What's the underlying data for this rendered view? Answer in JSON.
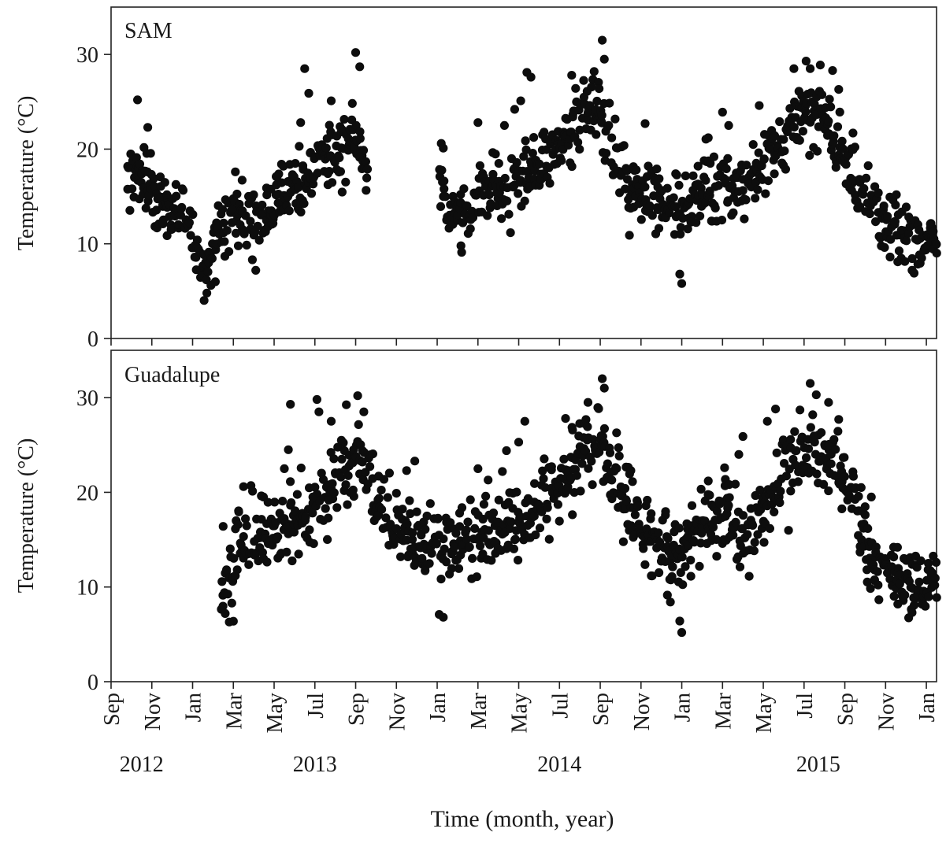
{
  "chart_data": [
    {
      "type": "scatter",
      "panel_label": "SAM",
      "ylabel": "Temperature (°C)",
      "ylim": [
        0,
        35
      ],
      "yticks": [
        0,
        10,
        20,
        30
      ],
      "x_unit": "months since 1 Sep 2012",
      "xlim": [
        0,
        40.5
      ],
      "segments": [
        {
          "start": 0.8,
          "end": 12.6,
          "anchors": [
            [
              0.8,
              16.5
            ],
            [
              1.5,
              17
            ],
            [
              2.2,
              14.5
            ],
            [
              3.0,
              13.5
            ],
            [
              3.6,
              12.5
            ],
            [
              4.3,
              9
            ],
            [
              4.7,
              7.5
            ],
            [
              5.2,
              11
            ],
            [
              5.8,
              13
            ],
            [
              6.5,
              12.5
            ],
            [
              7.2,
              13
            ],
            [
              8.0,
              14.5
            ],
            [
              8.8,
              15.5
            ],
            [
              9.5,
              16.5
            ],
            [
              10.2,
              19
            ],
            [
              11.0,
              19
            ],
            [
              11.8,
              22
            ],
            [
              12.6,
              18.5
            ]
          ],
          "amp": 3.2,
          "spikes": [
            [
              1.3,
              25.2
            ],
            [
              1.8,
              22.3
            ],
            [
              6.1,
              17.6
            ],
            [
              7.1,
              7.2
            ],
            [
              8.1,
              17.1
            ],
            [
              8.9,
              17.3
            ],
            [
              9.3,
              22.8
            ],
            [
              9.5,
              28.5
            ],
            [
              9.7,
              25.9
            ],
            [
              10.8,
              25.1
            ],
            [
              12.0,
              30.2
            ],
            [
              12.2,
              28.7
            ],
            [
              4.7,
              4.8
            ],
            [
              4.9,
              5.6
            ]
          ]
        },
        {
          "start": 16.1,
          "end": 40.5,
          "anchors": [
            [
              16.1,
              16
            ],
            [
              16.8,
              13
            ],
            [
              17.5,
              13.5
            ],
            [
              18.3,
              15.5
            ],
            [
              19.1,
              15.5
            ],
            [
              20.0,
              16.5
            ],
            [
              20.8,
              18
            ],
            [
              21.5,
              19
            ],
            [
              22.3,
              22
            ],
            [
              23.1,
              24
            ],
            [
              23.8,
              24.5
            ],
            [
              24.4,
              21
            ],
            [
              25.1,
              18
            ],
            [
              25.8,
              16
            ],
            [
              26.5,
              15
            ],
            [
              27.3,
              14
            ],
            [
              28.0,
              14
            ],
            [
              28.8,
              15
            ],
            [
              29.5,
              15.5
            ],
            [
              30.3,
              16
            ],
            [
              31.1,
              16
            ],
            [
              31.8,
              18
            ],
            [
              32.5,
              20.5
            ],
            [
              33.2,
              21.5
            ],
            [
              34.0,
              23.5
            ],
            [
              34.8,
              23.5
            ],
            [
              35.5,
              21.5
            ],
            [
              36.2,
              18.5
            ],
            [
              36.9,
              15
            ],
            [
              37.6,
              13
            ],
            [
              38.3,
              12.5
            ],
            [
              39.0,
              11
            ],
            [
              39.7,
              10.5
            ],
            [
              40.5,
              10.5
            ]
          ],
          "amp": 3.4,
          "spikes": [
            [
              16.2,
              20.6
            ],
            [
              16.3,
              20.1
            ],
            [
              17.2,
              9.1
            ],
            [
              18.0,
              22.8
            ],
            [
              19.3,
              22.5
            ],
            [
              19.8,
              24.2
            ],
            [
              20.1,
              25.1
            ],
            [
              20.4,
              28.1
            ],
            [
              20.6,
              27.6
            ],
            [
              22.6,
              27.8
            ],
            [
              23.7,
              28.2
            ],
            [
              24.1,
              31.5
            ],
            [
              24.2,
              29.5
            ],
            [
              26.2,
              22.7
            ],
            [
              27.7,
              17.4
            ],
            [
              27.9,
              6.8
            ],
            [
              28.0,
              5.8
            ],
            [
              28.8,
              18.2
            ],
            [
              29.3,
              21.2
            ],
            [
              30.0,
              23.9
            ],
            [
              30.3,
              22.5
            ],
            [
              31.8,
              24.6
            ],
            [
              33.5,
              28.5
            ],
            [
              34.1,
              29.3
            ],
            [
              34.3,
              28.5
            ],
            [
              35.4,
              28.3
            ],
            [
              35.7,
              26.3
            ],
            [
              36.4,
              21.7
            ],
            [
              38.6,
              8.1
            ],
            [
              39.3,
              7.2
            ],
            [
              40.2,
              12.1
            ]
          ]
        }
      ]
    },
    {
      "type": "scatter",
      "panel_label": "Guadalupe",
      "ylabel": "Temperature (°C)",
      "ylim": [
        0,
        35
      ],
      "yticks": [
        0,
        10,
        20,
        30
      ],
      "x_unit": "months since 1 Sep 2012",
      "xlim": [
        0,
        40.5
      ],
      "segments": [
        {
          "start": 5.4,
          "end": 40.5,
          "anchors": [
            [
              5.4,
              11
            ],
            [
              6.0,
              13
            ],
            [
              6.7,
              15.5
            ],
            [
              7.4,
              15
            ],
            [
              8.2,
              16
            ],
            [
              9.0,
              17
            ],
            [
              9.8,
              17.5
            ],
            [
              10.5,
              18.5
            ],
            [
              11.0,
              22.5
            ],
            [
              11.6,
              21.5
            ],
            [
              12.3,
              24
            ],
            [
              13.0,
              19.5
            ],
            [
              13.8,
              17.5
            ],
            [
              14.6,
              15.5
            ],
            [
              15.3,
              14
            ],
            [
              16.1,
              14
            ],
            [
              16.9,
              14.5
            ],
            [
              17.8,
              14.5
            ],
            [
              18.6,
              16
            ],
            [
              19.4,
              16
            ],
            [
              20.2,
              16.5
            ],
            [
              21.0,
              19
            ],
            [
              21.8,
              21
            ],
            [
              22.6,
              22.5
            ],
            [
              23.3,
              25
            ],
            [
              24.0,
              25
            ],
            [
              24.7,
              21.5
            ],
            [
              25.4,
              18.5
            ],
            [
              26.1,
              15.5
            ],
            [
              26.8,
              14.5
            ],
            [
              27.6,
              13
            ],
            [
              28.2,
              14
            ],
            [
              28.9,
              16
            ],
            [
              29.6,
              17
            ],
            [
              30.3,
              17.5
            ],
            [
              31.1,
              15.5
            ],
            [
              31.8,
              17
            ],
            [
              32.5,
              21.5
            ],
            [
              33.2,
              22.5
            ],
            [
              34.0,
              24
            ],
            [
              34.8,
              24.5
            ],
            [
              35.5,
              23
            ],
            [
              36.2,
              19.5
            ],
            [
              36.9,
              14.5
            ],
            [
              37.6,
              12
            ],
            [
              38.3,
              12
            ],
            [
              39.0,
              11
            ],
            [
              39.7,
              10
            ],
            [
              40.5,
              10.5
            ]
          ],
          "amp": 3.6,
          "spikes": [
            [
              5.5,
              16.4
            ],
            [
              5.6,
              7.2
            ],
            [
              5.8,
              6.3
            ],
            [
              6.5,
              20.6
            ],
            [
              8.5,
              22.5
            ],
            [
              8.7,
              24.5
            ],
            [
              8.8,
              29.3
            ],
            [
              9.9,
              19.5
            ],
            [
              10.1,
              29.8
            ],
            [
              10.2,
              28.5
            ],
            [
              10.8,
              27.5
            ],
            [
              11.3,
              25.5
            ],
            [
              11.9,
              24.5
            ],
            [
              12.1,
              30.2
            ],
            [
              12.4,
              28.5
            ],
            [
              14.5,
              22.3
            ],
            [
              14.9,
              23.3
            ],
            [
              15.5,
              17.5
            ],
            [
              16.1,
              7.1
            ],
            [
              16.3,
              6.8
            ],
            [
              17.1,
              17.8
            ],
            [
              18.0,
              22.5
            ],
            [
              18.5,
              21.3
            ],
            [
              19.2,
              22.2
            ],
            [
              19.4,
              24.4
            ],
            [
              20.0,
              25.3
            ],
            [
              20.3,
              27.5
            ],
            [
              22.3,
              27.8
            ],
            [
              23.4,
              29.5
            ],
            [
              24.1,
              32.0
            ],
            [
              24.2,
              31.0
            ],
            [
              25.5,
              22.3
            ],
            [
              27.2,
              17.6
            ],
            [
              27.9,
              6.4
            ],
            [
              28.0,
              5.2
            ],
            [
              28.5,
              18.6
            ],
            [
              29.3,
              21.2
            ],
            [
              30.1,
              22.6
            ],
            [
              30.8,
              24.0
            ],
            [
              31.0,
              25.9
            ],
            [
              32.2,
              27.5
            ],
            [
              32.6,
              28.8
            ],
            [
              33.8,
              28.7
            ],
            [
              34.3,
              31.5
            ],
            [
              34.6,
              30.3
            ],
            [
              35.2,
              29.5
            ],
            [
              35.7,
              27.7
            ],
            [
              36.8,
              20.5
            ],
            [
              37.3,
              19.5
            ],
            [
              38.6,
              8.2
            ],
            [
              39.3,
              7.3
            ],
            [
              40.1,
              12.5
            ]
          ]
        }
      ]
    }
  ],
  "x_axis": {
    "title": "Time (month, year)",
    "months": [
      {
        "m": 0,
        "label": "Sep"
      },
      {
        "m": 2,
        "label": "Nov"
      },
      {
        "m": 4,
        "label": "Jan"
      },
      {
        "m": 6,
        "label": "Mar"
      },
      {
        "m": 8,
        "label": "May"
      },
      {
        "m": 10,
        "label": "Jul"
      },
      {
        "m": 12,
        "label": "Sep"
      },
      {
        "m": 14,
        "label": "Nov"
      },
      {
        "m": 16,
        "label": "Jan"
      },
      {
        "m": 18,
        "label": "Mar"
      },
      {
        "m": 20,
        "label": "May"
      },
      {
        "m": 22,
        "label": "Jul"
      },
      {
        "m": 24,
        "label": "Sep"
      },
      {
        "m": 26,
        "label": "Nov"
      },
      {
        "m": 28,
        "label": "Jan"
      },
      {
        "m": 30,
        "label": "Mar"
      },
      {
        "m": 32,
        "label": "May"
      },
      {
        "m": 34,
        "label": "Jul"
      },
      {
        "m": 36,
        "label": "Sep"
      },
      {
        "m": 38,
        "label": "Nov"
      },
      {
        "m": 40,
        "label": "Jan"
      }
    ],
    "years": [
      {
        "m": 1.5,
        "label": "2012"
      },
      {
        "m": 10.0,
        "label": "2013"
      },
      {
        "m": 22.0,
        "label": "2014"
      },
      {
        "m": 34.7,
        "label": "2015"
      }
    ]
  },
  "colors": {
    "points": "#0d0d0d",
    "axes": "#222222"
  }
}
